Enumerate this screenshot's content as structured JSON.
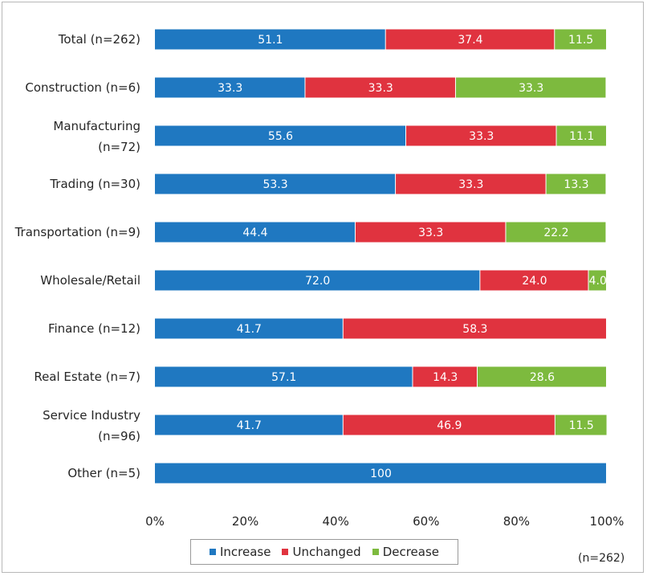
{
  "chart_data": {
    "type": "bar",
    "orientation": "horizontal",
    "stacked": true,
    "categories": [
      "Total (n=262)",
      "Construction (n=6)",
      "Manufacturing (n=72)",
      "Trading (n=30)",
      "Transportation (n=9)",
      "Wholesale/Retail",
      "Finance (n=12)",
      "Real Estate (n=7)",
      "Service Industry (n=96)",
      "Other (n=5)"
    ],
    "category_lines": [
      [
        "Total (n=262)"
      ],
      [
        "Construction (n=6)"
      ],
      [
        "Manufacturing",
        "(n=72)"
      ],
      [
        "Trading (n=30)"
      ],
      [
        "Transportation (n=9)"
      ],
      [
        "Wholesale/Retail"
      ],
      [
        "Finance (n=12)"
      ],
      [
        "Real Estate (n=7)"
      ],
      [
        "Service Industry",
        "(n=96)"
      ],
      [
        "Other (n=5)"
      ]
    ],
    "series": [
      {
        "name": "Increase",
        "color": "#1f78c1",
        "values": [
          51.1,
          33.3,
          55.6,
          53.3,
          44.4,
          72.0,
          41.7,
          57.1,
          41.7,
          100
        ]
      },
      {
        "name": "Unchanged",
        "color": "#e0333f",
        "values": [
          37.4,
          33.3,
          33.3,
          33.3,
          33.3,
          24.0,
          58.3,
          14.3,
          46.9,
          0
        ]
      },
      {
        "name": "Decrease",
        "color": "#7dba3e",
        "values": [
          11.5,
          33.3,
          11.1,
          13.3,
          22.2,
          4.0,
          0,
          28.6,
          11.5,
          0
        ]
      }
    ],
    "value_labels": [
      [
        "51.1",
        "37.4",
        "11.5"
      ],
      [
        "33.3",
        "33.3",
        "33.3"
      ],
      [
        "55.6",
        "33.3",
        "11.1"
      ],
      [
        "53.3",
        "33.3",
        "13.3"
      ],
      [
        "44.4",
        "33.3",
        "22.2"
      ],
      [
        "72.0",
        "24.0",
        "4.0"
      ],
      [
        "41.7",
        "58.3",
        ""
      ],
      [
        "57.1",
        "14.3",
        "28.6"
      ],
      [
        "41.7",
        "46.9",
        "11.5"
      ],
      [
        "100",
        "",
        ""
      ]
    ],
    "x_ticks": [
      "0%",
      "20%",
      "40%",
      "60%",
      "80%",
      "100%"
    ],
    "xlim": [
      0,
      100
    ],
    "grid": false,
    "legend_position": "bottom",
    "sample_note": "(n=262)"
  }
}
